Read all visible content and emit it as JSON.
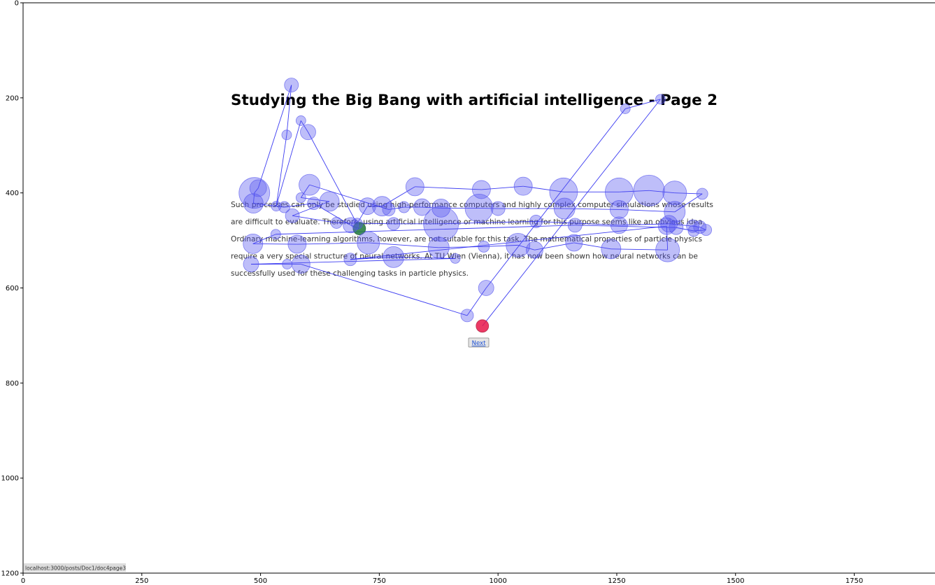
{
  "page": {
    "title": "Studying the Big Bang with artificial intelligence - Page 2",
    "paragraph_lines": [
      "Such processes can only be studied using high-performance computers and highly complex computer simulations whose results",
      "are difficult to evaluate. Therefore, using artificial intelligence or machine learning for this purpose seems like an obvious idea.",
      "Ordinary machine-learning algorithms, however, are not suitable for this task. The mathematical properties of particle physics",
      "require a very special structure of neural networks. At TU Wien (Vienna), it has now been shown how neural networks can be",
      "successfully used for these challenging tasks in particle physics."
    ],
    "next_label": "Next",
    "status_url": "localhost:3000/posts/Doc1/doc4page3"
  },
  "chart_data": {
    "type": "scatter",
    "title": "",
    "xlabel": "",
    "ylabel": "",
    "xlim": [
      0,
      1920
    ],
    "ylim": [
      1200,
      0
    ],
    "x_ticks": [
      0,
      250,
      500,
      750,
      1000,
      1250,
      1500,
      1750
    ],
    "y_ticks": [
      0,
      200,
      400,
      600,
      800,
      1000,
      1200
    ],
    "grid": false,
    "legend": "none",
    "colors": {
      "fixation": "#5555ee",
      "path": "#1a1aee",
      "start": "#1f7a3a",
      "end": "#e8174a"
    },
    "series": [
      {
        "values": [
          {
            "x": 708,
            "y": 475,
            "r": 9
          },
          {
            "x": 690,
            "y": 468,
            "r": 11
          },
          {
            "x": 612,
            "y": 422,
            "r": 9
          },
          {
            "x": 550,
            "y": 430,
            "r": 8
          },
          {
            "x": 485,
            "y": 422,
            "r": 14
          },
          {
            "x": 487,
            "y": 400,
            "r": 22
          },
          {
            "x": 495,
            "y": 390,
            "r": 12
          },
          {
            "x": 565,
            "y": 173,
            "r": 10
          },
          {
            "x": 555,
            "y": 278,
            "r": 7
          },
          {
            "x": 533,
            "y": 428,
            "r": 7
          },
          {
            "x": 585,
            "y": 248,
            "r": 7
          },
          {
            "x": 600,
            "y": 272,
            "r": 11
          },
          {
            "x": 703,
            "y": 465,
            "r": 8
          },
          {
            "x": 725,
            "y": 428,
            "r": 12
          },
          {
            "x": 756,
            "y": 428,
            "r": 14
          },
          {
            "x": 825,
            "y": 387,
            "r": 13
          },
          {
            "x": 965,
            "y": 393,
            "r": 13
          },
          {
            "x": 1053,
            "y": 386,
            "r": 13
          },
          {
            "x": 1138,
            "y": 398,
            "r": 20
          },
          {
            "x": 1255,
            "y": 398,
            "r": 20
          },
          {
            "x": 1318,
            "y": 395,
            "r": 22
          },
          {
            "x": 1372,
            "y": 400,
            "r": 17
          },
          {
            "x": 1430,
            "y": 402,
            "r": 8
          },
          {
            "x": 1372,
            "y": 440,
            "r": 15
          },
          {
            "x": 1255,
            "y": 435,
            "r": 13
          },
          {
            "x": 1140,
            "y": 433,
            "r": 15
          },
          {
            "x": 1000,
            "y": 433,
            "r": 10
          },
          {
            "x": 960,
            "y": 432,
            "r": 20
          },
          {
            "x": 880,
            "y": 432,
            "r": 13
          },
          {
            "x": 840,
            "y": 430,
            "r": 12
          },
          {
            "x": 802,
            "y": 430,
            "r": 8
          },
          {
            "x": 770,
            "y": 435,
            "r": 9
          },
          {
            "x": 603,
            "y": 383,
            "r": 15
          },
          {
            "x": 585,
            "y": 410,
            "r": 7
          },
          {
            "x": 645,
            "y": 418,
            "r": 14
          },
          {
            "x": 567,
            "y": 448,
            "r": 10
          },
          {
            "x": 660,
            "y": 463,
            "r": 8
          },
          {
            "x": 780,
            "y": 465,
            "r": 9
          },
          {
            "x": 880,
            "y": 465,
            "r": 25
          },
          {
            "x": 1080,
            "y": 460,
            "r": 9
          },
          {
            "x": 1255,
            "y": 468,
            "r": 12
          },
          {
            "x": 1360,
            "y": 465,
            "r": 12
          },
          {
            "x": 1410,
            "y": 470,
            "r": 9
          },
          {
            "x": 1425,
            "y": 472,
            "r": 9
          },
          {
            "x": 1438,
            "y": 478,
            "r": 8
          },
          {
            "x": 1412,
            "y": 480,
            "r": 8
          },
          {
            "x": 1375,
            "y": 473,
            "r": 10
          },
          {
            "x": 1162,
            "y": 468,
            "r": 10
          },
          {
            "x": 532,
            "y": 487,
            "r": 7
          },
          {
            "x": 484,
            "y": 507,
            "r": 14
          },
          {
            "x": 577,
            "y": 508,
            "r": 13
          },
          {
            "x": 727,
            "y": 505,
            "r": 16
          },
          {
            "x": 875,
            "y": 515,
            "r": 15
          },
          {
            "x": 970,
            "y": 513,
            "r": 8
          },
          {
            "x": 1042,
            "y": 510,
            "r": 17
          },
          {
            "x": 1077,
            "y": 520,
            "r": 12
          },
          {
            "x": 1160,
            "y": 505,
            "r": 12
          },
          {
            "x": 1238,
            "y": 518,
            "r": 14
          },
          {
            "x": 1357,
            "y": 520,
            "r": 17
          },
          {
            "x": 1355,
            "y": 470,
            "r": 12
          },
          {
            "x": 689,
            "y": 540,
            "r": 9
          },
          {
            "x": 780,
            "y": 535,
            "r": 15
          },
          {
            "x": 910,
            "y": 538,
            "r": 7
          },
          {
            "x": 480,
            "y": 550,
            "r": 11
          },
          {
            "x": 556,
            "y": 550,
            "r": 7
          },
          {
            "x": 585,
            "y": 550,
            "r": 13
          },
          {
            "x": 935,
            "y": 658,
            "r": 9
          },
          {
            "x": 975,
            "y": 600,
            "r": 11
          },
          {
            "x": 1268,
            "y": 223,
            "r": 7
          },
          {
            "x": 1342,
            "y": 203,
            "r": 7
          },
          {
            "x": 967,
            "y": 680,
            "r": 9
          }
        ]
      }
    ],
    "start_point": {
      "x": 708,
      "y": 475
    },
    "end_point": {
      "x": 967,
      "y": 680
    }
  }
}
